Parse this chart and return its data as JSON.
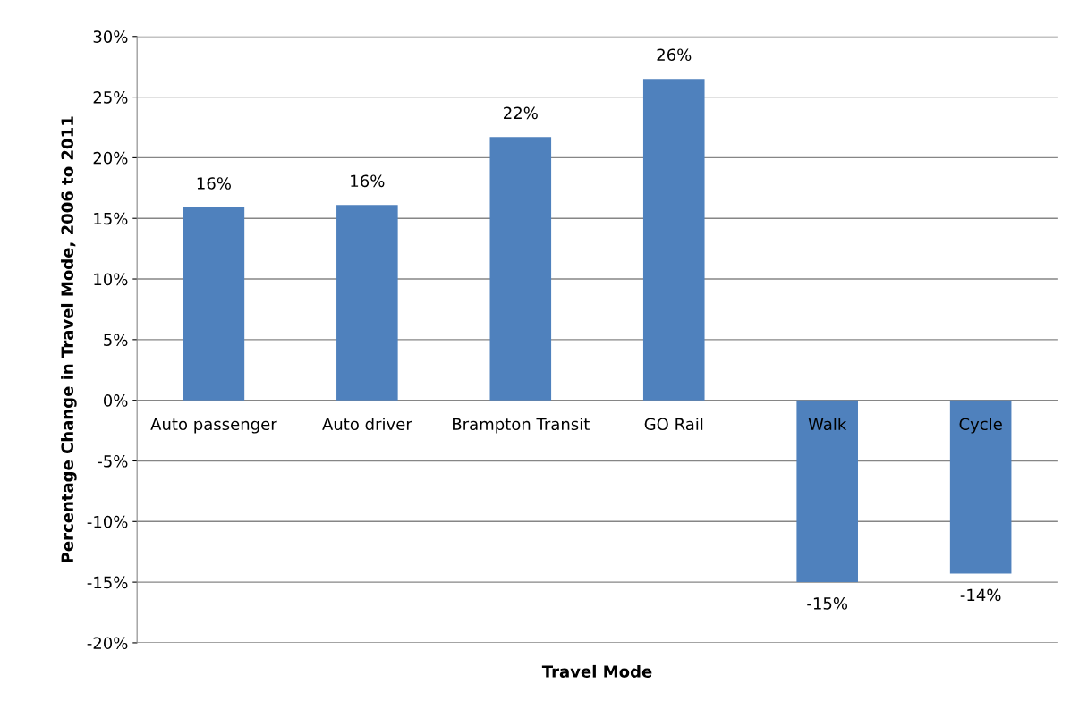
{
  "chart_data": {
    "type": "bar",
    "xlabel": "Travel Mode",
    "ylabel": "Percentage Change in Travel Mode, 2006 to 2011",
    "categories": [
      "Auto passenger",
      "Auto driver",
      "Brampton Transit",
      "GO Rail",
      "Walk",
      "Cycle"
    ],
    "values": [
      15.9,
      16.1,
      21.7,
      26.5,
      -15.0,
      -14.3
    ],
    "value_labels": [
      "16%",
      "16%",
      "22%",
      "26%",
      "-15%",
      "-14%"
    ],
    "color": "#4f81bd",
    "ylim": [
      -20,
      30
    ],
    "yticks": [
      {
        "value": -20,
        "label": "-20%"
      },
      {
        "value": -15,
        "label": "-15%"
      },
      {
        "value": -10,
        "label": "-10%"
      },
      {
        "value": -5,
        "label": "-5%"
      },
      {
        "value": 0,
        "label": "0%"
      },
      {
        "value": 5,
        "label": "5%"
      },
      {
        "value": 10,
        "label": "10%"
      },
      {
        "value": 15,
        "label": "15%"
      },
      {
        "value": 20,
        "label": "20%"
      },
      {
        "value": 25,
        "label": "25%"
      },
      {
        "value": 30,
        "label": "30%"
      }
    ],
    "grid": "y",
    "legend": false
  }
}
